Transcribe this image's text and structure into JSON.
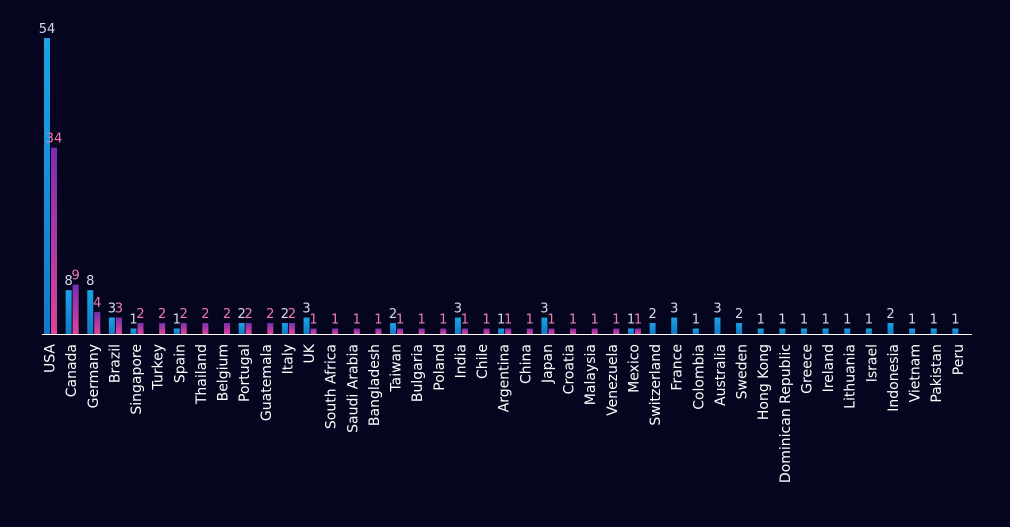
{
  "colors": {
    "background": "#05051f",
    "axis": "#ffffff",
    "series1_top": "#1ba3e4",
    "series1_bottom": "#1279c9",
    "series2_top": "#7a2fb0",
    "series2_bottom": "#e0439a",
    "label_series1": "#d8d8e6",
    "label_series2": "#f27aab"
  },
  "chart_data": {
    "type": "bar",
    "ylim": [
      0,
      54
    ],
    "grid": false,
    "legend": "none",
    "categories": [
      "USA",
      "Canada",
      "Germany",
      "Brazil",
      "Singapore",
      "Turkey",
      "Spain",
      "Thailand",
      "Belgium",
      "Portugal",
      "Guatemala",
      "Italy",
      "UK",
      "South Africa",
      "Saudi Arabia",
      "Bangladesh",
      "Taiwan",
      "Bulgaria",
      "Poland",
      "India",
      "Chile",
      "Argentina",
      "China",
      "Japan",
      "Croatia",
      "Malaysia",
      "Venezuela",
      "Mexico",
      "Switzerland",
      "France",
      "Colombia",
      "Australia",
      "Sweden",
      "Hong Kong",
      "Dominican Republic",
      "Greece",
      "Ireland",
      "Lithuania",
      "Israel",
      "Indonesia",
      "Vietnam",
      "Pakistan",
      "Peru"
    ],
    "series": [
      {
        "values": [
          54,
          8,
          8,
          3,
          1,
          null,
          1,
          null,
          null,
          2,
          null,
          2,
          3,
          null,
          null,
          null,
          2,
          null,
          null,
          3,
          null,
          1,
          null,
          3,
          null,
          null,
          null,
          1,
          2,
          3,
          1,
          3,
          2,
          1,
          1,
          1,
          1,
          1,
          1,
          2,
          1,
          1,
          1
        ]
      },
      {
        "values": [
          34,
          9,
          4,
          3,
          2,
          2,
          2,
          2,
          2,
          2,
          2,
          2,
          1,
          1,
          1,
          1,
          1,
          1,
          1,
          1,
          1,
          1,
          1,
          1,
          1,
          1,
          1,
          1,
          null,
          null,
          null,
          null,
          null,
          null,
          null,
          null,
          null,
          null,
          null,
          null,
          null,
          null,
          null
        ]
      }
    ]
  }
}
